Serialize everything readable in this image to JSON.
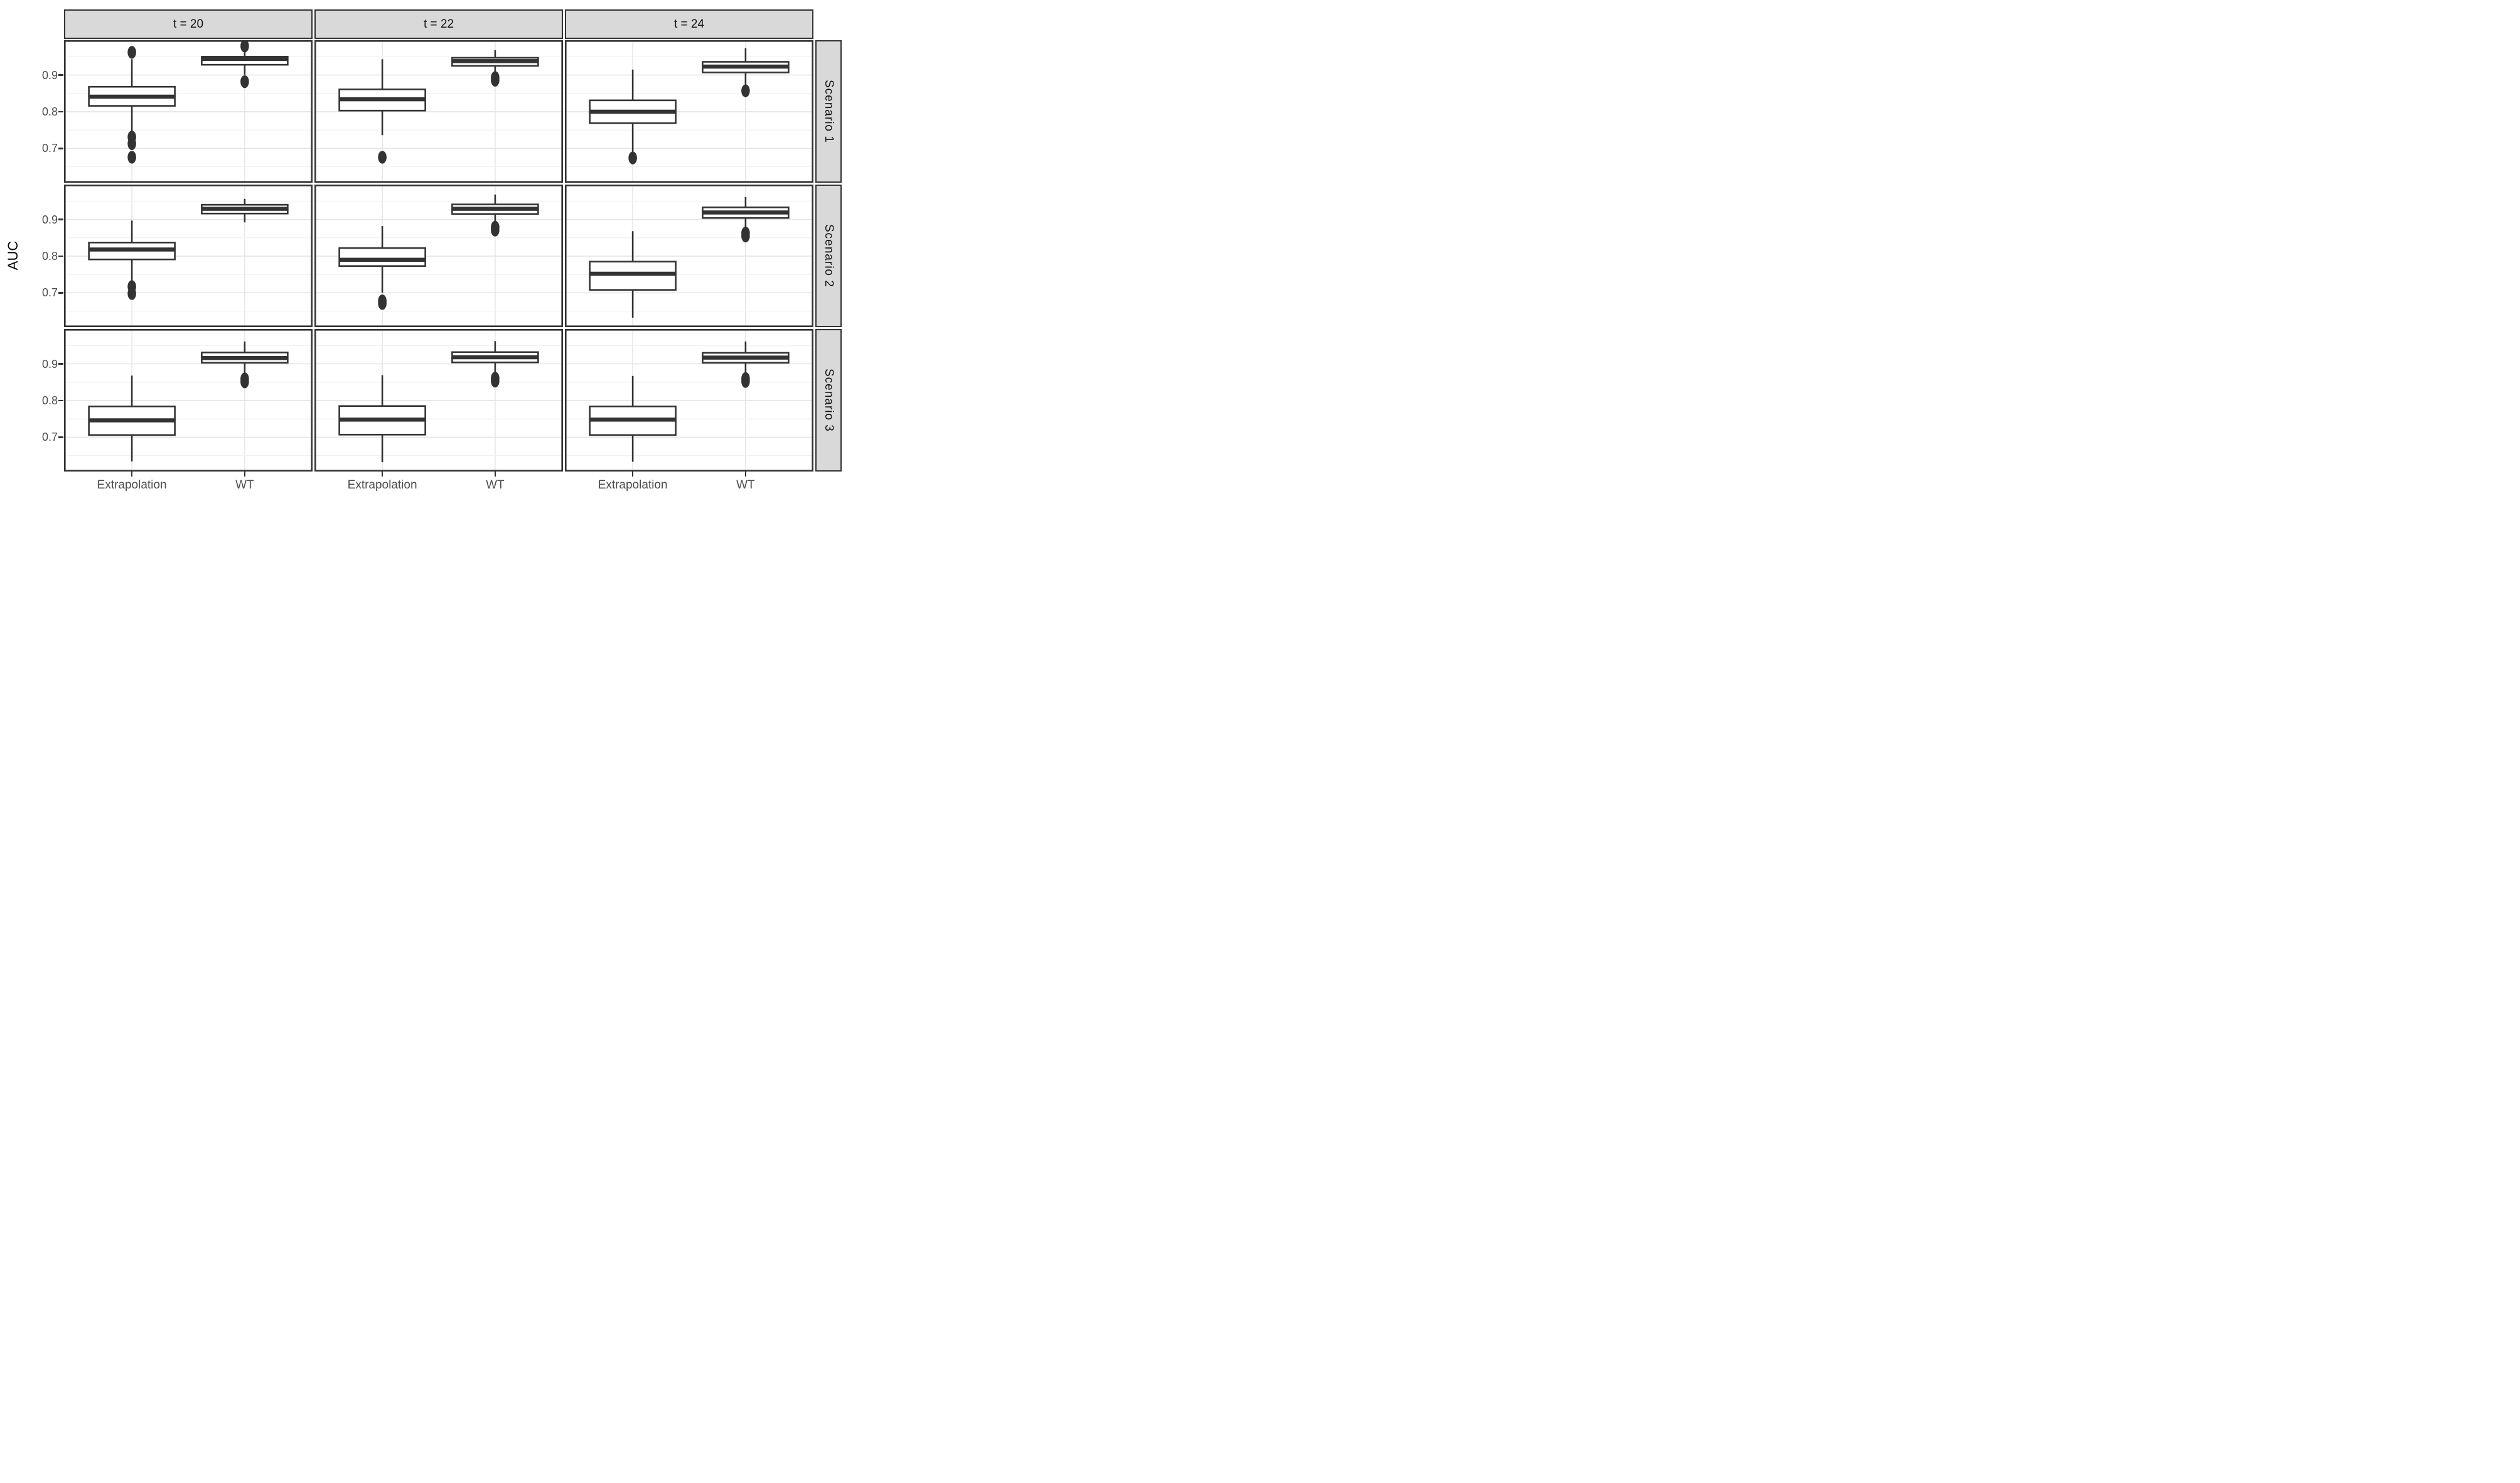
{
  "chart_data": {
    "type": "boxplot",
    "title": "",
    "ylabel": "AUC",
    "xlabel": "",
    "facet_cols": [
      "t = 20",
      "t = 22",
      "t = 24"
    ],
    "facet_rows": [
      "Scenario 1",
      "Scenario 2",
      "Scenario 3"
    ],
    "categories": [
      "Extrapolation",
      "WT"
    ],
    "y_ticks": [
      0.9,
      0.8,
      0.7
    ],
    "y_minor_gridlines": [
      0.95,
      0.85,
      0.75,
      0.65
    ],
    "ylim": [
      0.6065,
      0.995
    ],
    "grid": "on",
    "legend": "none",
    "panels": [
      {
        "facet_row": "Scenario 1",
        "facet_col": "t = 20",
        "boxes": [
          {
            "category": "Extrapolation",
            "whisker_low": 0.742,
            "q1": 0.816,
            "median": 0.841,
            "q3": 0.868,
            "whisker_high": 0.943,
            "outliers": [
              0.962,
              0.731,
              0.713,
              0.676
            ]
          },
          {
            "category": "WT",
            "whisker_low": 0.901,
            "q1": 0.928,
            "median": 0.944,
            "q3": 0.95,
            "whisker_high": 0.966,
            "outliers": [
              0.979,
              0.882
            ]
          }
        ]
      },
      {
        "facet_row": "Scenario 1",
        "facet_col": "t = 22",
        "boxes": [
          {
            "category": "Extrapolation",
            "whisker_low": 0.736,
            "q1": 0.803,
            "median": 0.834,
            "q3": 0.861,
            "whisker_high": 0.943,
            "outliers": [
              0.676
            ]
          },
          {
            "category": "WT",
            "whisker_low": 0.906,
            "q1": 0.925,
            "median": 0.938,
            "q3": 0.947,
            "whisker_high": 0.968,
            "outliers": [
              0.893,
              0.886
            ]
          }
        ]
      },
      {
        "facet_row": "Scenario 1",
        "facet_col": "t = 24",
        "boxes": [
          {
            "category": "Extrapolation",
            "whisker_low": 0.688,
            "q1": 0.769,
            "median": 0.8,
            "q3": 0.831,
            "whisker_high": 0.915,
            "outliers": [
              0.674
            ]
          },
          {
            "category": "WT",
            "whisker_low": 0.869,
            "q1": 0.907,
            "median": 0.923,
            "q3": 0.936,
            "whisker_high": 0.973,
            "outliers": [
              0.857
            ]
          }
        ]
      },
      {
        "facet_row": "Scenario 2",
        "facet_col": "t = 20",
        "boxes": [
          {
            "category": "Extrapolation",
            "whisker_low": 0.731,
            "q1": 0.791,
            "median": 0.818,
            "q3": 0.837,
            "whisker_high": 0.897,
            "outliers": [
              0.717,
              0.698
            ]
          },
          {
            "category": "WT",
            "whisker_low": 0.892,
            "q1": 0.916,
            "median": 0.929,
            "q3": 0.94,
            "whisker_high": 0.956,
            "outliers": []
          }
        ]
      },
      {
        "facet_row": "Scenario 2",
        "facet_col": "t = 22",
        "boxes": [
          {
            "category": "Extrapolation",
            "whisker_low": 0.7,
            "q1": 0.773,
            "median": 0.79,
            "q3": 0.822,
            "whisker_high": 0.882,
            "outliers": [
              0.678,
              0.671
            ]
          },
          {
            "category": "WT",
            "whisker_low": 0.891,
            "q1": 0.915,
            "median": 0.929,
            "q3": 0.941,
            "whisker_high": 0.968,
            "outliers": [
              0.879,
              0.871
            ]
          }
        ]
      },
      {
        "facet_row": "Scenario 2",
        "facet_col": "t = 24",
        "boxes": [
          {
            "category": "Extrapolation",
            "whisker_low": 0.632,
            "q1": 0.708,
            "median": 0.752,
            "q3": 0.785,
            "whisker_high": 0.868,
            "outliers": []
          },
          {
            "category": "WT",
            "whisker_low": 0.872,
            "q1": 0.904,
            "median": 0.919,
            "q3": 0.933,
            "whisker_high": 0.961,
            "outliers": [
              0.863,
              0.855
            ]
          }
        ]
      },
      {
        "facet_row": "Scenario 3",
        "facet_col": "t = 20",
        "boxes": [
          {
            "category": "Extrapolation",
            "whisker_low": 0.634,
            "q1": 0.706,
            "median": 0.746,
            "q3": 0.784,
            "whisker_high": 0.868,
            "outliers": []
          },
          {
            "category": "WT",
            "whisker_low": 0.871,
            "q1": 0.903,
            "median": 0.916,
            "q3": 0.931,
            "whisker_high": 0.961,
            "outliers": [
              0.859,
              0.851
            ]
          }
        ]
      },
      {
        "facet_row": "Scenario 3",
        "facet_col": "t = 22",
        "boxes": [
          {
            "category": "Extrapolation",
            "whisker_low": 0.632,
            "q1": 0.707,
            "median": 0.748,
            "q3": 0.785,
            "whisker_high": 0.869,
            "outliers": []
          },
          {
            "category": "WT",
            "whisker_low": 0.873,
            "q1": 0.904,
            "median": 0.918,
            "q3": 0.932,
            "whisker_high": 0.962,
            "outliers": [
              0.861,
              0.853
            ]
          }
        ]
      },
      {
        "facet_row": "Scenario 3",
        "facet_col": "t = 24",
        "boxes": [
          {
            "category": "Extrapolation",
            "whisker_low": 0.633,
            "q1": 0.706,
            "median": 0.748,
            "q3": 0.784,
            "whisker_high": 0.867,
            "outliers": []
          },
          {
            "category": "WT",
            "whisker_low": 0.87,
            "q1": 0.903,
            "median": 0.917,
            "q3": 0.93,
            "whisker_high": 0.961,
            "outliers": [
              0.86,
              0.852
            ]
          }
        ]
      }
    ],
    "colors": {
      "strip_background": "#d9d9d9",
      "panel_border": "#333333",
      "box_stroke": "#333333",
      "box_fill": "#ffffff",
      "outlier_fill": "#333333",
      "grid_major": "#e4e4e4",
      "grid_minor": "#f1f1f1",
      "tick_text": "#4d4d4d",
      "axis_title_text": "#000000",
      "strip_text": "#141414"
    }
  }
}
